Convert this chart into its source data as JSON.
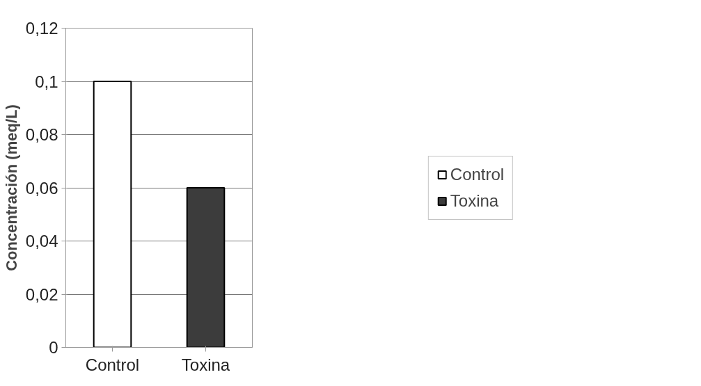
{
  "chart_data": {
    "type": "bar",
    "ylabel": "Concentración (meq/L)",
    "categories": [
      "Control",
      "Toxina"
    ],
    "series": [
      {
        "name": "Control",
        "color": "#ffffff",
        "values": [
          0.1,
          null
        ]
      },
      {
        "name": "Toxina",
        "color": "#3c3c3c",
        "values": [
          null,
          0.06
        ]
      }
    ],
    "ylim": [
      0,
      0.12
    ],
    "yticks": [
      {
        "value": 0,
        "label": "0"
      },
      {
        "value": 0.02,
        "label": "0,02"
      },
      {
        "value": 0.04,
        "label": "0,04"
      },
      {
        "value": 0.06,
        "label": "0,06"
      },
      {
        "value": 0.08,
        "label": "0,08"
      },
      {
        "value": 0.1,
        "label": "0,1"
      },
      {
        "value": 0.12,
        "label": "0,12"
      }
    ],
    "grid": "y",
    "legend": "right"
  }
}
